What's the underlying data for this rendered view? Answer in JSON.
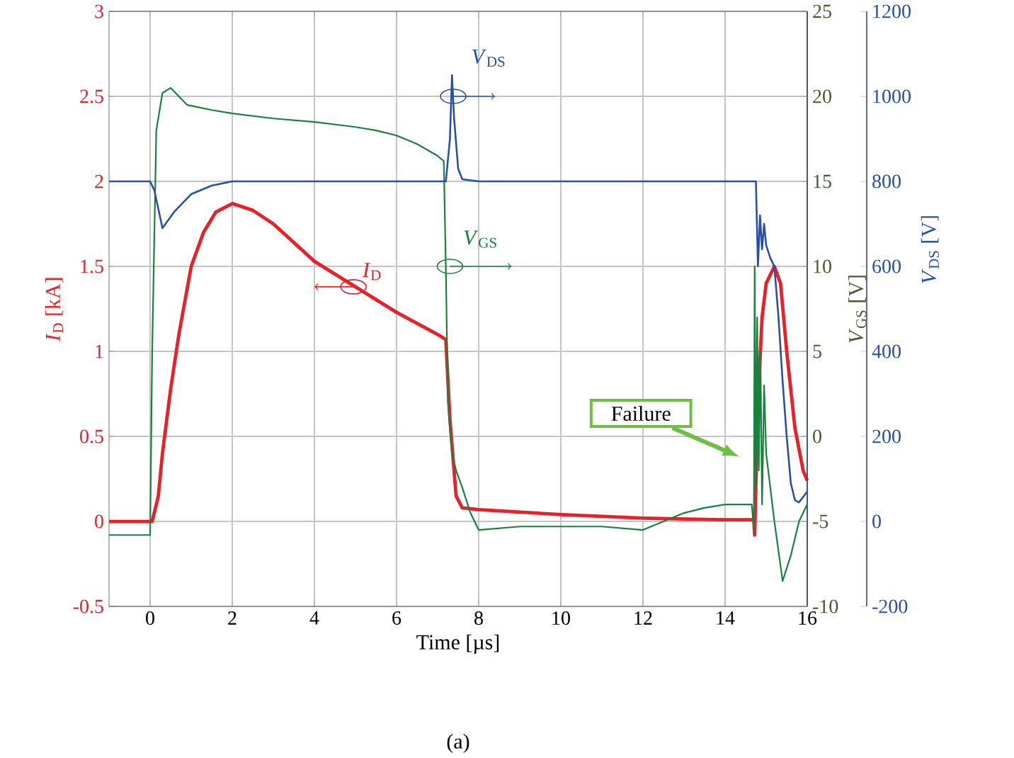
{
  "chart_data": {
    "type": "line",
    "xlabel": "Time [µs]",
    "ylabel": "*I*$_{D}$ [kA]",
    "y2label": "*V*$_{GS}$ [V]",
    "y3label": "*V*$_{DS}$ [V]",
    "xlim": [
      -1,
      16
    ],
    "xticks": [
      0,
      2,
      4,
      6,
      8,
      10,
      12,
      14,
      16
    ],
    "ylim": [
      -0.5,
      3
    ],
    "yticks": [
      -0.5,
      0,
      0.5,
      1,
      1.5,
      2,
      2.5,
      3
    ],
    "y2lim": [
      -10,
      25
    ],
    "y2ticks": [
      -10,
      -5,
      0,
      5,
      10,
      15,
      20,
      25
    ],
    "y3lim": [
      -200,
      1200
    ],
    "y3ticks": [
      -200,
      0,
      200,
      400,
      600,
      800,
      1000,
      1200
    ],
    "grid": true,
    "marker": "none",
    "line_style": "solid",
    "annotations": [
      "Failure",
      "(a)"
    ],
    "series": [
      {
        "name": "*I*$_{D}$",
        "color": "#e8202a",
        "x": [
          -1,
          0,
          0.05,
          0.2,
          0.3,
          0.5,
          0.7,
          1,
          1.3,
          1.6,
          2,
          2.5,
          3,
          4,
          5,
          6,
          7,
          7.2,
          7.3,
          7.45,
          7.6,
          8,
          10,
          12,
          14,
          14.7,
          14.72,
          14.8,
          14.9,
          15,
          15.2,
          15.35,
          15.5,
          15.7,
          15.9,
          16
        ],
        "values": [
          0,
          0,
          0,
          0.15,
          0.4,
          0.78,
          1.1,
          1.5,
          1.7,
          1.82,
          1.87,
          1.83,
          1.75,
          1.53,
          1.38,
          1.23,
          1.1,
          1.07,
          0.6,
          0.15,
          0.08,
          0.07,
          0.04,
          0.02,
          0.01,
          0.01,
          -0.08,
          0.7,
          1.2,
          1.4,
          1.5,
          1.4,
          1.0,
          0.55,
          0.3,
          0.24
        ]
      },
      {
        "name": "*V*$_{GS}$",
        "color": "#1a8040",
        "axis": "y2",
        "x": [
          -1,
          0,
          0.05,
          0.15,
          0.3,
          0.5,
          0.7,
          0.9,
          1.5,
          2,
          3,
          4,
          5,
          5.5,
          6,
          6.5,
          7,
          7.15,
          7.2,
          7.25,
          7.35,
          7.45,
          7.6,
          7.8,
          8,
          9,
          10,
          11,
          12,
          12.5,
          13,
          13.5,
          14,
          14.65,
          14.7,
          14.72,
          14.75,
          14.78,
          14.82,
          14.86,
          14.9,
          14.95,
          15.0,
          15.1,
          15.2,
          15.4,
          15.6,
          15.8,
          16
        ],
        "values": [
          -5.8,
          -5.8,
          5,
          18,
          20.2,
          20.5,
          20,
          19.5,
          19.2,
          19,
          18.7,
          18.5,
          18.2,
          18,
          17.7,
          17.2,
          16.5,
          16.2,
          10,
          2,
          -1,
          -2,
          -3,
          -4.5,
          -5.5,
          -5.3,
          -5.3,
          -5.3,
          -5.5,
          -5,
          -4.5,
          -4.2,
          -4,
          -4,
          -5.5,
          10,
          -3,
          7,
          -2,
          5,
          -4,
          3,
          -1,
          -3,
          -5,
          -8.5,
          -7,
          -5,
          -4
        ]
      },
      {
        "name": "*V*$_{DS}$",
        "color": "#2a4fa8",
        "axis": "y3",
        "x": [
          -1,
          0,
          0.1,
          0.3,
          0.6,
          1,
          1.5,
          2,
          3,
          4,
          6,
          7.2,
          7.3,
          7.35,
          7.4,
          7.5,
          7.6,
          8,
          10,
          12,
          14,
          14.75,
          14.8,
          14.85,
          14.9,
          14.95,
          15.0,
          15.1,
          15.2,
          15.3,
          15.4,
          15.5,
          15.6,
          15.7,
          15.8,
          16
        ],
        "values": [
          800,
          800,
          780,
          690,
          730,
          770,
          790,
          800,
          800,
          800,
          800,
          800,
          900,
          1050,
          950,
          830,
          805,
          800,
          800,
          800,
          800,
          800,
          600,
          720,
          640,
          700,
          650,
          620,
          600,
          480,
          330,
          200,
          90,
          50,
          45,
          70
        ]
      }
    ]
  }
}
